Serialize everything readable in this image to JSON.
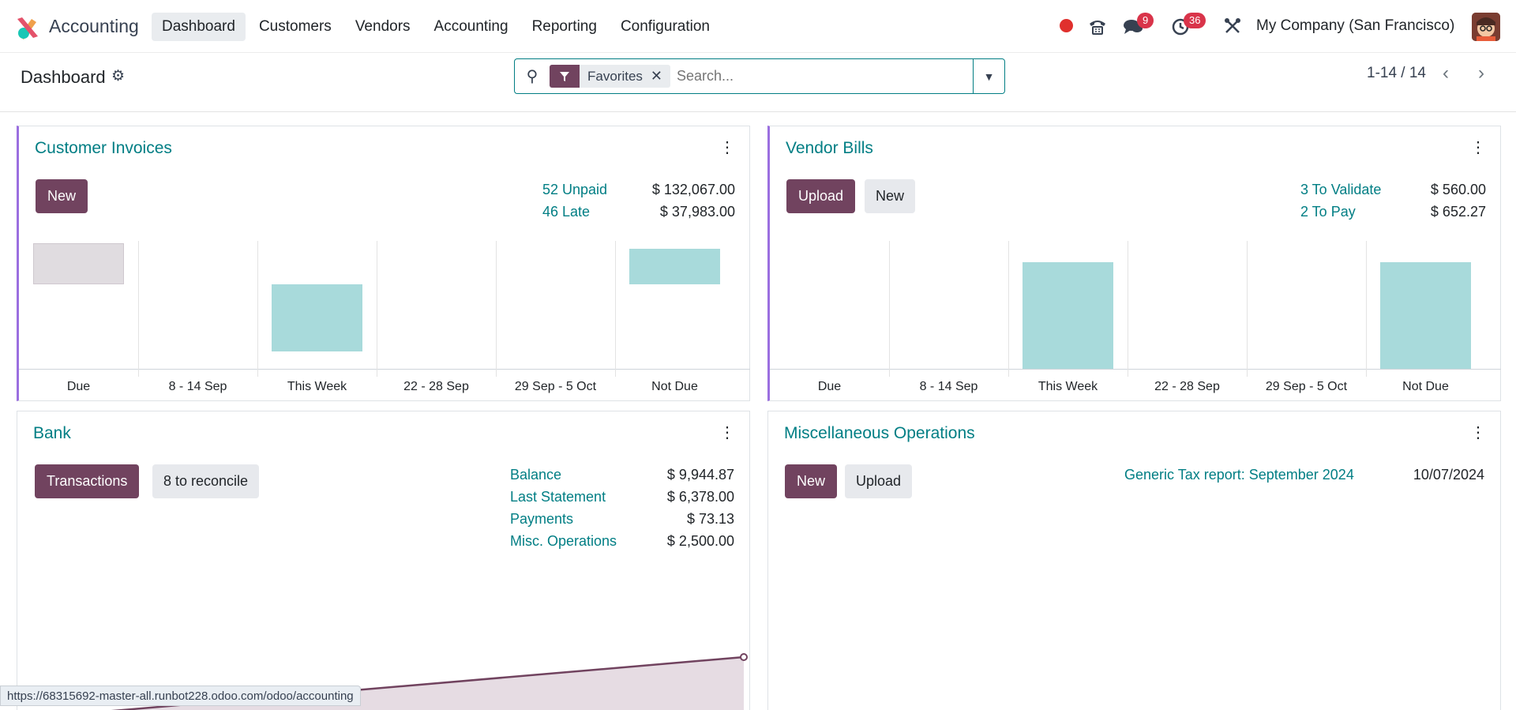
{
  "app": {
    "name": "Accounting"
  },
  "nav": {
    "items": [
      "Dashboard",
      "Customers",
      "Vendors",
      "Accounting",
      "Reporting",
      "Configuration"
    ]
  },
  "systray": {
    "messages_badge": "9",
    "activities_badge": "36",
    "company": "My Company (San Francisco)"
  },
  "control": {
    "title": "Dashboard",
    "facet_label": "Favorites",
    "search_placeholder": "Search...",
    "pager": "1-14 / 14"
  },
  "customer_invoices": {
    "title": "Customer Invoices",
    "new_label": "New",
    "stats": [
      {
        "label": "52 Unpaid",
        "value": "$ 132,067.00"
      },
      {
        "label": "46 Late",
        "value": "$ 37,983.00"
      }
    ],
    "chart_data": {
      "type": "bar",
      "categories": [
        "Due",
        "8 - 14 Sep",
        "This Week",
        "22 - 28 Sep",
        "29 Sep - 5 Oct",
        "Not Due"
      ],
      "values": [
        1,
        0,
        1.6,
        0,
        0,
        0.85
      ],
      "bar_colors": [
        "#e0dce0",
        "#a8dadb",
        "#a8dadb",
        "#a8dadb",
        "#a8dadb",
        "#a8dadb"
      ]
    }
  },
  "vendor_bills": {
    "title": "Vendor Bills",
    "upload_label": "Upload",
    "new_label": "New",
    "stats": [
      {
        "label": "3 To Validate",
        "value": "$ 560.00"
      },
      {
        "label": "2 To Pay",
        "value": "$ 652.27"
      }
    ],
    "chart_data": {
      "type": "bar",
      "categories": [
        "Due",
        "8 - 14 Sep",
        "This Week",
        "22 - 28 Sep",
        "29 Sep - 5 Oct",
        "Not Due"
      ],
      "values": [
        0,
        0,
        1,
        0,
        0,
        1
      ],
      "bar_colors": [
        "#a8dadb",
        "#a8dadb",
        "#a8dadb",
        "#a8dadb",
        "#a8dadb",
        "#a8dadb"
      ]
    }
  },
  "bank": {
    "title": "Bank",
    "transactions_label": "Transactions",
    "reconcile_label": "8 to reconcile",
    "stats": [
      {
        "label": "Balance",
        "value": "$ 9,944.87"
      },
      {
        "label": "Last Statement",
        "value": "$ 6,378.00"
      },
      {
        "label": "Payments",
        "value": "$ 73.13"
      },
      {
        "label": "Misc. Operations",
        "value": "$ 2,500.00"
      }
    ],
    "chart_data": {
      "type": "area",
      "color": "#71435f"
    }
  },
  "misc": {
    "title": "Miscellaneous Operations",
    "new_label": "New",
    "upload_label": "Upload",
    "report_label": "Generic Tax report: September 2024",
    "report_date": "10/07/2024"
  },
  "status_url": "https://68315692-master-all.runbot228.odoo.com/odoo/accounting",
  "colors": {
    "primary": "#71435f",
    "link": "#017e84",
    "accent_border": "#9b6fe0"
  }
}
